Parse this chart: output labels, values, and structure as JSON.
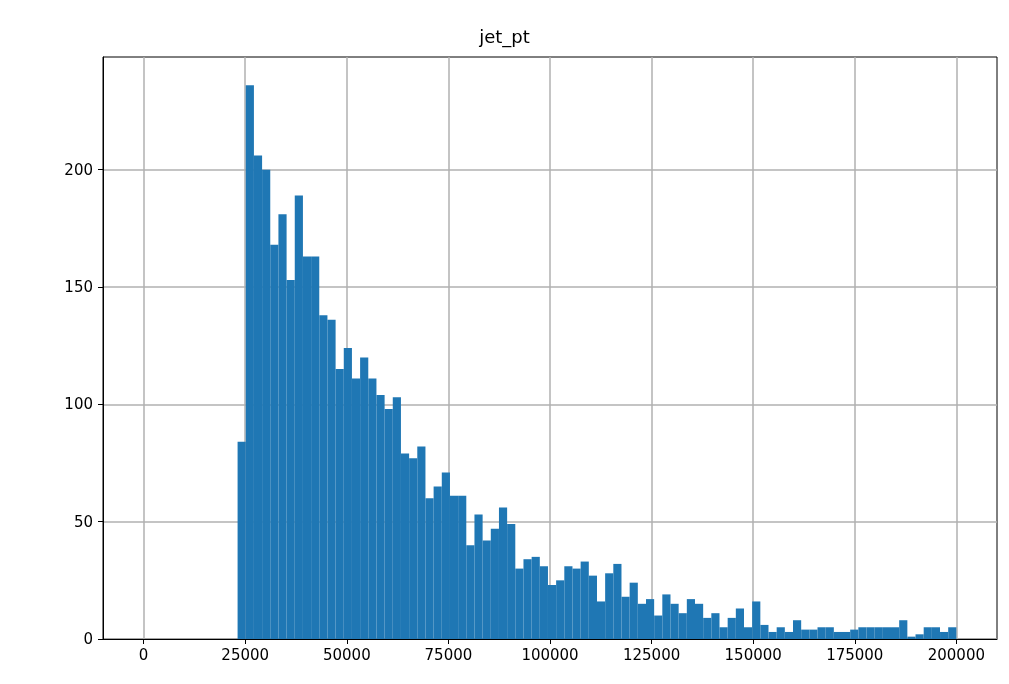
{
  "chart_data": {
    "type": "histogram",
    "title": "jet_pt",
    "color": "#1f77b4",
    "bins": [
      23120,
      25130,
      27140,
      29150,
      31160,
      33170,
      35180,
      37190,
      39200,
      41210,
      43220,
      45230,
      47240,
      49250,
      51260,
      53270,
      55280,
      57290,
      59300,
      61310,
      63320,
      65330,
      67340,
      69350,
      71360,
      73370,
      75380,
      77390,
      79400,
      81410,
      83420,
      85430,
      87440,
      89450,
      91460,
      93470,
      95480,
      97490,
      99500,
      101510,
      103520,
      105530,
      107540,
      109550,
      111560,
      113570,
      115580,
      117590,
      119600,
      121610,
      123620,
      125630,
      127640,
      129650,
      131660,
      133670,
      135680,
      137690,
      139700,
      141710,
      143720,
      145730,
      147740,
      149750,
      151760,
      153770,
      155780,
      157790,
      159800,
      161810,
      163820,
      165830,
      167840,
      169850,
      171860,
      173870,
      175880,
      177890,
      179900,
      181910,
      183920,
      185930,
      187940,
      189950,
      191960,
      193970,
      195980,
      197990,
      200000
    ],
    "values": [
      84,
      236,
      206,
      200,
      168,
      181,
      153,
      189,
      163,
      163,
      138,
      136,
      115,
      124,
      111,
      120,
      111,
      104,
      98,
      103,
      79,
      77,
      82,
      60,
      65,
      71,
      61,
      61,
      40,
      53,
      42,
      47,
      56,
      49,
      30,
      34,
      35,
      31,
      23,
      25,
      31,
      30,
      33,
      27,
      16,
      28,
      32,
      18,
      24,
      15,
      17,
      10,
      19,
      15,
      11,
      17,
      15,
      9,
      11,
      5,
      9,
      13,
      5,
      16,
      6,
      3,
      5,
      3,
      8,
      4,
      4,
      5,
      5,
      3,
      3,
      4,
      5,
      5,
      5,
      5,
      5,
      8,
      1,
      2,
      5,
      5,
      3,
      5
    ],
    "xlim": [
      -10000,
      210000
    ],
    "xticks": [
      0,
      25000,
      50000,
      75000,
      100000,
      125000,
      150000,
      175000,
      200000
    ],
    "ylim": [
      0,
      248
    ],
    "yticks": [
      0,
      50,
      100,
      150,
      200
    ],
    "grid": true
  }
}
